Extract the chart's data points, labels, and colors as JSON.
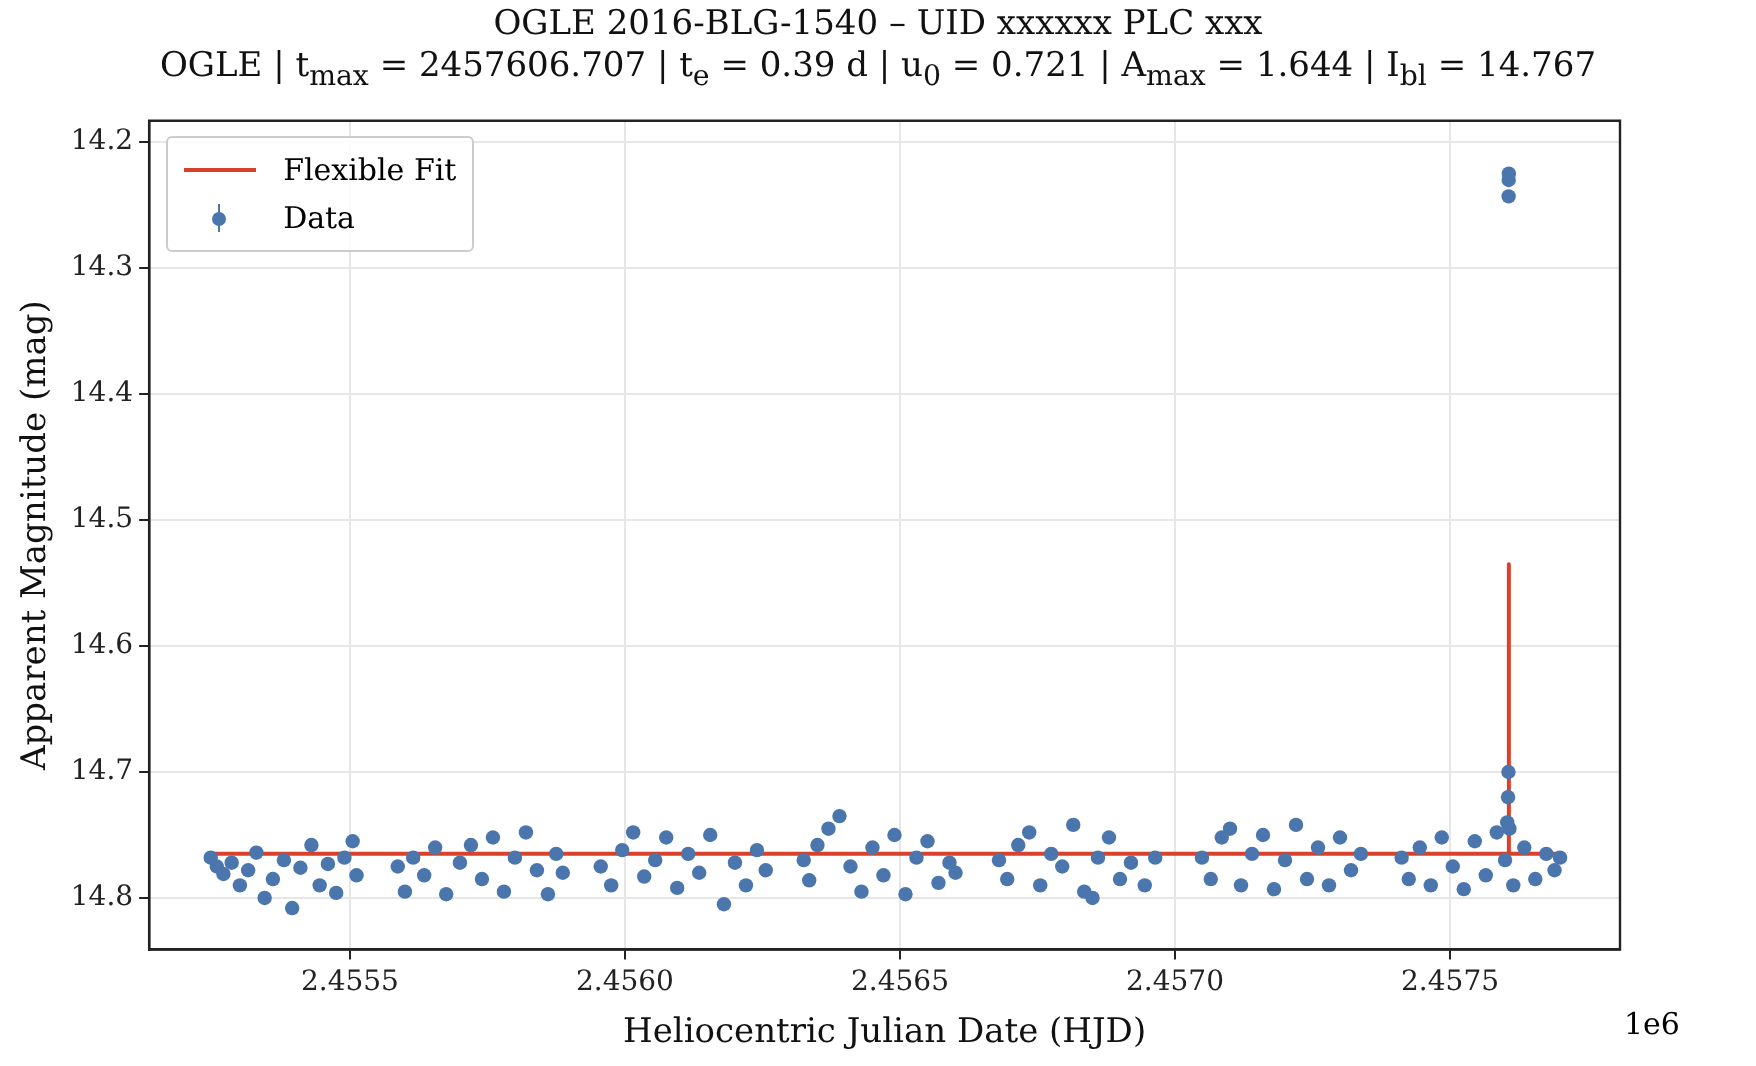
{
  "chart_data": {
    "type": "scatter",
    "title": "OGLE 2016-BLG-1540 – UID xxxxxx PLC xxx",
    "subtitle": "OGLE | t$_{max}$ = 2457606.707 | t$_{e}$ = 0.39 d | u$_{0}$ = 0.721 | A$_{max}$ = 1.644 | I$_{bl}$ = 14.767",
    "xlabel": "Heliocentric Julian Date (HJD)",
    "ylabel": "Apparent Magnitude (mag)",
    "annotations": [
      "1e6"
    ],
    "xlim": [
      2.455135,
      2.457809
    ],
    "xticks": [
      2.4555,
      {
        "value": 2.456,
        "label": "2.4560"
      },
      2.4565,
      {
        "value": 2.457,
        "label": "2.4570"
      },
      2.4575
    ],
    "ylim": [
      14.841,
      14.183
    ],
    "yticks": [
      14.2,
      14.3,
      14.4,
      14.5,
      14.6,
      14.7,
      14.8
    ],
    "grid": true,
    "legend": "top left",
    "marker": "circle",
    "series": [
      {
        "name": "Flexible Fit",
        "type": "line",
        "color": "#d9412b",
        "marker": "none",
        "x": [
          2.455247,
          2.4576062,
          2.457606707,
          2.4576072,
          2.4577
        ],
        "values": [
          14.765,
          14.765,
          14.535,
          14.765,
          14.765
        ]
      },
      {
        "name": "Data",
        "color": "#4a76ad",
        "x": [
          2.455247,
          2.455258,
          2.45527,
          2.455285,
          2.4553,
          2.455315,
          2.45533,
          2.455345,
          2.45536,
          2.45538,
          2.455395,
          2.45541,
          2.45543,
          2.455445,
          2.45546,
          2.455475,
          2.45549,
          2.455505,
          2.455512,
          2.455587,
          2.4556,
          2.455615,
          2.455635,
          2.455655,
          2.455675,
          2.4557,
          2.45572,
          2.45574,
          2.45576,
          2.45578,
          2.4558,
          2.45582,
          2.45584,
          2.45586,
          2.455875,
          2.455887,
          2.455956,
          2.455975,
          2.455995,
          2.456015,
          2.456035,
          2.456055,
          2.456075,
          2.456095,
          2.456115,
          2.456135,
          2.456155,
          2.45618,
          2.4562,
          2.45622,
          2.45624,
          2.456256,
          2.456325,
          2.456335,
          2.45635,
          2.45637,
          2.45639,
          2.45641,
          2.45643,
          2.45645,
          2.45647,
          2.45649,
          2.45651,
          2.45653,
          2.45655,
          2.45657,
          2.45659,
          2.456601,
          2.45668,
          2.456695,
          2.456715,
          2.456735,
          2.456755,
          2.456775,
          2.456795,
          2.456815,
          2.456835,
          2.45685,
          2.45686,
          2.45688,
          2.4569,
          2.45692,
          2.456945,
          2.456964,
          2.457049,
          2.457065,
          2.457085,
          2.4571,
          2.45712,
          2.45714,
          2.45716,
          2.45718,
          2.4572,
          2.45722,
          2.45724,
          2.45726,
          2.45728,
          2.4573,
          2.45732,
          2.457338,
          2.457412,
          2.457425,
          2.457445,
          2.457465,
          2.457485,
          2.457505,
          2.457525,
          2.457545,
          2.457565,
          2.457585,
          2.4576,
          2.457604,
          2.4576055,
          2.4576062,
          2.4576065,
          2.4576067,
          2.4576069,
          2.457608,
          2.457615,
          2.457635,
          2.457655,
          2.457675,
          2.45769,
          2.4577
        ],
        "values": [
          14.768,
          14.775,
          14.781,
          14.772,
          14.79,
          14.778,
          14.764,
          14.8,
          14.785,
          14.77,
          14.808,
          14.776,
          14.758,
          14.79,
          14.773,
          14.796,
          14.768,
          14.755,
          14.782,
          14.775,
          14.795,
          14.768,
          14.782,
          14.76,
          14.797,
          14.772,
          14.758,
          14.785,
          14.752,
          14.795,
          14.768,
          14.748,
          14.778,
          14.797,
          14.765,
          14.78,
          14.775,
          14.79,
          14.762,
          14.748,
          14.783,
          14.77,
          14.752,
          14.792,
          14.765,
          14.78,
          14.75,
          14.805,
          14.772,
          14.79,
          14.762,
          14.778,
          14.77,
          14.786,
          14.758,
          14.745,
          14.735,
          14.775,
          14.795,
          14.76,
          14.782,
          14.75,
          14.797,
          14.768,
          14.755,
          14.788,
          14.772,
          14.78,
          14.77,
          14.785,
          14.758,
          14.748,
          14.79,
          14.765,
          14.775,
          14.742,
          14.795,
          14.8,
          14.768,
          14.752,
          14.785,
          14.772,
          14.79,
          14.768,
          14.768,
          14.785,
          14.752,
          14.745,
          14.79,
          14.765,
          14.75,
          14.793,
          14.77,
          14.742,
          14.785,
          14.76,
          14.79,
          14.752,
          14.778,
          14.765,
          14.768,
          14.785,
          14.76,
          14.79,
          14.752,
          14.775,
          14.793,
          14.755,
          14.782,
          14.748,
          14.77,
          14.74,
          14.72,
          14.7,
          14.243,
          14.23,
          14.225,
          14.745,
          14.79,
          14.76,
          14.785,
          14.765,
          14.778,
          14.768
        ]
      }
    ]
  }
}
